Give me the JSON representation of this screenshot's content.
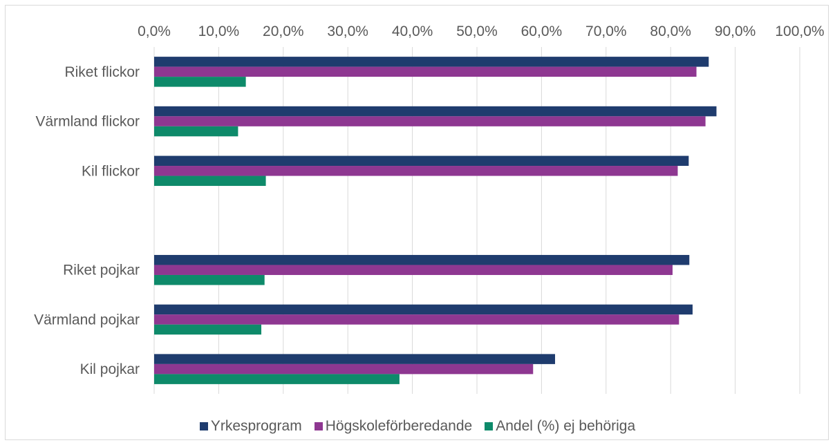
{
  "chart_data": {
    "type": "bar",
    "orientation": "horizontal",
    "categories": [
      "Riket flickor",
      "Värmland flickor",
      "Kil flickor",
      "",
      "Riket pojkar",
      "Värmland pojkar",
      "Kil pojkar"
    ],
    "series": [
      {
        "name": "Yrkesprogram",
        "color": "#1f3c6e",
        "values": [
          85.9,
          87.1,
          82.8,
          null,
          82.9,
          83.4,
          62.1
        ]
      },
      {
        "name": "Högskoleförberedande",
        "color": "#8e3791",
        "values": [
          84.0,
          85.4,
          81.1,
          null,
          80.3,
          81.3,
          58.7
        ]
      },
      {
        "name": "Andel (%) ej behöriga",
        "color": "#0e8a6a",
        "values": [
          14.2,
          13.0,
          17.3,
          null,
          17.1,
          16.6,
          38.0
        ]
      }
    ],
    "x_ticks": [
      "0,0%",
      "10,0%",
      "20,0%",
      "30,0%",
      "40,0%",
      "50,0%",
      "60,0%",
      "70,0%",
      "80,0%",
      "90,0%",
      "100,0%"
    ],
    "xlim": [
      0,
      100
    ],
    "axis_position": "top",
    "grid": true,
    "legend_position": "bottom"
  }
}
